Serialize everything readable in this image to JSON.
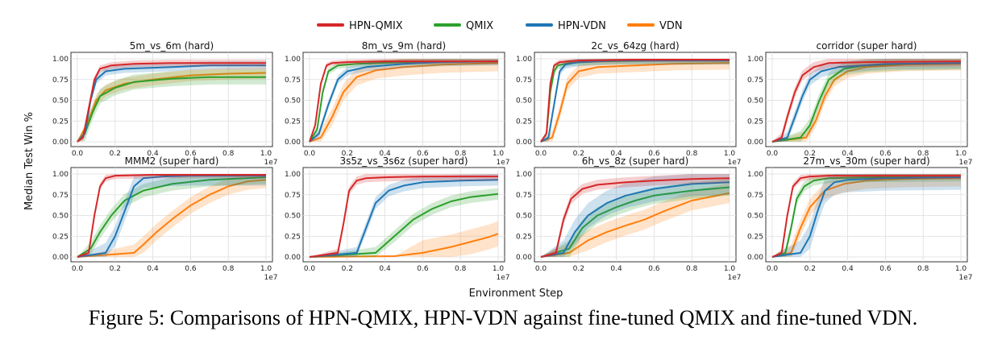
{
  "figure": {
    "legend": [
      {
        "name": "HPN-QMIX",
        "color": "#d62728"
      },
      {
        "name": "QMIX",
        "color": "#2ca02c"
      },
      {
        "name": "HPN-VDN",
        "color": "#1f77b4"
      },
      {
        "name": "VDN",
        "color": "#ff7f0e"
      }
    ],
    "xlabel": "Environment Step",
    "ylabel": "Median Test Win %",
    "x_scale_label": "1e7",
    "caption": "Figure 5: Comparisons of HPN-QMIX, HPN-VDN against fine-tuned QMIX and fine-tuned VDN."
  },
  "chart_data": [
    {
      "type": "line",
      "title": "5m_vs_6m (hard)",
      "xlim": [
        0,
        1.0
      ],
      "ylim": [
        0,
        1.0
      ],
      "xticks": [
        "0.0",
        "0.2",
        "0.4",
        "0.6",
        "0.8",
        "1.0"
      ],
      "yticks": [
        "0.00",
        "0.25",
        "0.50",
        "0.75",
        "1.00"
      ],
      "series": [
        {
          "name": "HPN-QMIX",
          "x": [
            0,
            0.03,
            0.06,
            0.09,
            0.12,
            0.18,
            0.3,
            0.5,
            0.7,
            1.0
          ],
          "y": [
            0,
            0.05,
            0.4,
            0.75,
            0.88,
            0.92,
            0.94,
            0.95,
            0.95,
            0.95
          ],
          "band": 0.04
        },
        {
          "name": "QMIX",
          "x": [
            0,
            0.04,
            0.08,
            0.12,
            0.2,
            0.3,
            0.5,
            0.7,
            1.0
          ],
          "y": [
            0,
            0.1,
            0.35,
            0.55,
            0.65,
            0.72,
            0.76,
            0.78,
            0.78
          ],
          "band": 0.09
        },
        {
          "name": "HPN-VDN",
          "x": [
            0,
            0.04,
            0.07,
            0.1,
            0.15,
            0.25,
            0.5,
            0.7,
            1.0
          ],
          "y": [
            0,
            0.1,
            0.5,
            0.75,
            0.85,
            0.88,
            0.9,
            0.92,
            0.92
          ],
          "band": 0.05
        },
        {
          "name": "VDN",
          "x": [
            0,
            0.05,
            0.1,
            0.15,
            0.25,
            0.4,
            0.6,
            0.8,
            1.0
          ],
          "y": [
            0,
            0.2,
            0.5,
            0.62,
            0.7,
            0.75,
            0.8,
            0.82,
            0.83
          ],
          "band": 0.07
        }
      ]
    },
    {
      "type": "line",
      "title": "8m_vs_9m (hard)",
      "xlim": [
        0,
        1.0
      ],
      "ylim": [
        0,
        1.0
      ],
      "xticks": [
        "0.0",
        "0.2",
        "0.4",
        "0.6",
        "0.8",
        "1.0"
      ],
      "yticks": [
        "0.00",
        "0.25",
        "0.50",
        "0.75",
        "1.00"
      ],
      "series": [
        {
          "name": "HPN-QMIX",
          "x": [
            0,
            0.03,
            0.06,
            0.09,
            0.12,
            0.2,
            0.4,
            1.0
          ],
          "y": [
            0,
            0.2,
            0.7,
            0.92,
            0.95,
            0.96,
            0.97,
            0.97
          ],
          "band": 0.03
        },
        {
          "name": "QMIX",
          "x": [
            0,
            0.04,
            0.07,
            0.1,
            0.15,
            0.25,
            0.5,
            1.0
          ],
          "y": [
            0,
            0.15,
            0.6,
            0.85,
            0.92,
            0.94,
            0.96,
            0.97
          ],
          "band": 0.04
        },
        {
          "name": "HPN-VDN",
          "x": [
            0,
            0.05,
            0.1,
            0.15,
            0.2,
            0.3,
            0.5,
            0.7,
            1.0
          ],
          "y": [
            0,
            0.1,
            0.45,
            0.75,
            0.85,
            0.9,
            0.94,
            0.96,
            0.97
          ],
          "band": 0.05
        },
        {
          "name": "VDN",
          "x": [
            0,
            0.06,
            0.12,
            0.18,
            0.25,
            0.35,
            0.5,
            0.7,
            1.0
          ],
          "y": [
            0,
            0.05,
            0.3,
            0.6,
            0.78,
            0.86,
            0.9,
            0.93,
            0.95
          ],
          "band": 0.1
        }
      ]
    },
    {
      "type": "line",
      "title": "2c_vs_64zg (hard)",
      "xlim": [
        0,
        1.0
      ],
      "ylim": [
        0,
        1.0
      ],
      "xticks": [
        "0.0",
        "0.2",
        "0.4",
        "0.6",
        "0.8",
        "1.0"
      ],
      "yticks": [
        "0.00",
        "0.25",
        "0.50",
        "0.75",
        "1.00"
      ],
      "series": [
        {
          "name": "HPN-QMIX",
          "x": [
            0,
            0.03,
            0.05,
            0.07,
            0.1,
            0.2,
            0.5,
            1.0
          ],
          "y": [
            0,
            0.1,
            0.7,
            0.92,
            0.96,
            0.98,
            0.99,
            0.99
          ],
          "band": 0.03
        },
        {
          "name": "QMIX",
          "x": [
            0,
            0.03,
            0.05,
            0.07,
            0.09,
            0.15,
            0.3,
            0.6,
            1.0
          ],
          "y": [
            0,
            0.1,
            0.6,
            0.85,
            0.92,
            0.95,
            0.97,
            0.98,
            0.98
          ],
          "band": 0.04
        },
        {
          "name": "HPN-VDN",
          "x": [
            0,
            0.04,
            0.07,
            0.1,
            0.13,
            0.2,
            0.4,
            1.0
          ],
          "y": [
            0,
            0.05,
            0.45,
            0.85,
            0.93,
            0.96,
            0.98,
            0.98
          ],
          "band": 0.05
        },
        {
          "name": "VDN",
          "x": [
            0,
            0.06,
            0.1,
            0.14,
            0.2,
            0.3,
            0.5,
            0.7,
            1.0
          ],
          "y": [
            0,
            0.05,
            0.35,
            0.7,
            0.85,
            0.9,
            0.92,
            0.94,
            0.95
          ],
          "band": 0.08
        }
      ]
    },
    {
      "type": "line",
      "title": "corridor (super hard)",
      "xlim": [
        0,
        1.0
      ],
      "ylim": [
        0,
        1.0
      ],
      "xticks": [
        "0.0",
        "0.2",
        "0.4",
        "0.6",
        "0.8",
        "1.0"
      ],
      "yticks": [
        "0.00",
        "0.25",
        "0.50",
        "0.75",
        "1.00"
      ],
      "series": [
        {
          "name": "HPN-QMIX",
          "x": [
            0,
            0.05,
            0.08,
            0.12,
            0.16,
            0.22,
            0.3,
            0.5,
            1.0
          ],
          "y": [
            0,
            0.05,
            0.3,
            0.6,
            0.8,
            0.9,
            0.95,
            0.96,
            0.97
          ],
          "band": 0.06
        },
        {
          "name": "QMIX",
          "x": [
            0,
            0.15,
            0.2,
            0.25,
            0.3,
            0.38,
            0.5,
            0.7,
            1.0
          ],
          "y": [
            0,
            0.05,
            0.2,
            0.5,
            0.75,
            0.88,
            0.92,
            0.94,
            0.95
          ],
          "band": 0.08
        },
        {
          "name": "HPN-VDN",
          "x": [
            0,
            0.08,
            0.12,
            0.16,
            0.2,
            0.26,
            0.35,
            0.6,
            1.0
          ],
          "y": [
            0,
            0.05,
            0.3,
            0.55,
            0.75,
            0.85,
            0.9,
            0.94,
            0.95
          ],
          "band": 0.07
        },
        {
          "name": "VDN",
          "x": [
            0,
            0.18,
            0.23,
            0.28,
            0.33,
            0.4,
            0.5,
            0.7,
            1.0
          ],
          "y": [
            0,
            0.05,
            0.25,
            0.55,
            0.75,
            0.85,
            0.9,
            0.93,
            0.94
          ],
          "band": 0.08
        }
      ]
    },
    {
      "type": "line",
      "title": "MMM2 (super hard)",
      "xlim": [
        0,
        1.0
      ],
      "ylim": [
        0,
        1.0
      ],
      "xticks": [
        "0.0",
        "0.2",
        "0.4",
        "0.6",
        "0.8",
        "1.0"
      ],
      "yticks": [
        "0.00",
        "0.25",
        "0.50",
        "0.75",
        "1.00"
      ],
      "series": [
        {
          "name": "HPN-QMIX",
          "x": [
            0,
            0.06,
            0.09,
            0.12,
            0.15,
            0.2,
            0.4,
            1.0
          ],
          "y": [
            0,
            0.05,
            0.5,
            0.85,
            0.95,
            0.98,
            0.99,
            0.99
          ],
          "band": 0.04
        },
        {
          "name": "QMIX",
          "x": [
            0,
            0.07,
            0.12,
            0.18,
            0.25,
            0.35,
            0.5,
            0.7,
            1.0
          ],
          "y": [
            0,
            0.1,
            0.3,
            0.5,
            0.68,
            0.8,
            0.88,
            0.93,
            0.96
          ],
          "band": 0.08
        },
        {
          "name": "HPN-VDN",
          "x": [
            0,
            0.15,
            0.2,
            0.25,
            0.3,
            0.35,
            0.45,
            0.6,
            1.0
          ],
          "y": [
            0,
            0.05,
            0.25,
            0.55,
            0.85,
            0.95,
            0.97,
            0.98,
            0.98
          ],
          "band": 0.12
        },
        {
          "name": "VDN",
          "x": [
            0,
            0.3,
            0.35,
            0.42,
            0.5,
            0.6,
            0.7,
            0.8,
            0.9,
            1.0
          ],
          "y": [
            0,
            0.05,
            0.15,
            0.3,
            0.45,
            0.62,
            0.75,
            0.85,
            0.91,
            0.93
          ],
          "band": 0.1
        }
      ]
    },
    {
      "type": "line",
      "title": "3s5z_vs_3s6z (super hard)",
      "xlim": [
        0,
        1.0
      ],
      "ylim": [
        0,
        1.0
      ],
      "xticks": [
        "0.0",
        "0.2",
        "0.4",
        "0.6",
        "0.8",
        "1.0"
      ],
      "yticks": [
        "0.00",
        "0.25",
        "0.50",
        "0.75",
        "1.00"
      ],
      "series": [
        {
          "name": "HPN-QMIX",
          "x": [
            0,
            0.15,
            0.18,
            0.21,
            0.25,
            0.3,
            0.4,
            0.6,
            1.0
          ],
          "y": [
            0,
            0.05,
            0.4,
            0.8,
            0.92,
            0.95,
            0.96,
            0.97,
            0.97
          ],
          "band": 0.05
        },
        {
          "name": "QMIX",
          "x": [
            0,
            0.35,
            0.45,
            0.55,
            0.65,
            0.75,
            0.85,
            1.0
          ],
          "y": [
            0,
            0.05,
            0.25,
            0.45,
            0.58,
            0.67,
            0.72,
            0.76
          ],
          "band": 0.07
        },
        {
          "name": "HPN-VDN",
          "x": [
            0,
            0.25,
            0.3,
            0.35,
            0.42,
            0.5,
            0.6,
            0.8,
            1.0
          ],
          "y": [
            0,
            0.05,
            0.35,
            0.65,
            0.8,
            0.86,
            0.9,
            0.92,
            0.93
          ],
          "band": 0.07
        },
        {
          "name": "VDN",
          "x": [
            0,
            0.45,
            0.6,
            0.75,
            0.85,
            0.95,
            1.0
          ],
          "y": [
            0,
            0.01,
            0.05,
            0.12,
            0.18,
            0.24,
            0.28
          ],
          "band": 0.15
        }
      ]
    },
    {
      "type": "line",
      "title": "6h_vs_8z (super hard)",
      "xlim": [
        0,
        1.0
      ],
      "ylim": [
        0,
        1.0
      ],
      "xticks": [
        "0.0",
        "0.2",
        "0.4",
        "0.6",
        "0.8",
        "1.0"
      ],
      "yticks": [
        "0.00",
        "0.25",
        "0.50",
        "0.75",
        "1.00"
      ],
      "series": [
        {
          "name": "HPN-QMIX",
          "x": [
            0,
            0.08,
            0.12,
            0.16,
            0.22,
            0.3,
            0.45,
            0.6,
            0.8,
            1.0
          ],
          "y": [
            0,
            0.05,
            0.45,
            0.7,
            0.82,
            0.87,
            0.9,
            0.92,
            0.94,
            0.95
          ],
          "band": 0.06
        },
        {
          "name": "QMIX",
          "x": [
            0,
            0.15,
            0.22,
            0.3,
            0.4,
            0.5,
            0.6,
            0.8,
            1.0
          ],
          "y": [
            0,
            0.1,
            0.35,
            0.5,
            0.6,
            0.68,
            0.74,
            0.8,
            0.84
          ],
          "band": 0.1
        },
        {
          "name": "HPN-VDN",
          "x": [
            0,
            0.12,
            0.18,
            0.25,
            0.35,
            0.45,
            0.6,
            0.8,
            1.0
          ],
          "y": [
            0,
            0.05,
            0.3,
            0.5,
            0.65,
            0.74,
            0.82,
            0.88,
            0.9
          ],
          "band": 0.15
        },
        {
          "name": "VDN",
          "x": [
            0,
            0.15,
            0.25,
            0.35,
            0.45,
            0.55,
            0.65,
            0.8,
            1.0
          ],
          "y": [
            0,
            0.05,
            0.2,
            0.3,
            0.38,
            0.45,
            0.55,
            0.68,
            0.77
          ],
          "band": 0.12
        }
      ]
    },
    {
      "type": "line",
      "title": "27m_vs_30m (super hard)",
      "xlim": [
        0,
        1.0
      ],
      "ylim": [
        0,
        1.0
      ],
      "xticks": [
        "0.0",
        "0.2",
        "0.4",
        "0.6",
        "0.8",
        "1.0"
      ],
      "yticks": [
        "0.00",
        "0.25",
        "0.50",
        "0.75",
        "1.00"
      ],
      "series": [
        {
          "name": "HPN-QMIX",
          "x": [
            0,
            0.05,
            0.08,
            0.11,
            0.15,
            0.2,
            0.3,
            1.0
          ],
          "y": [
            0,
            0.05,
            0.5,
            0.85,
            0.95,
            0.97,
            0.98,
            0.98
          ],
          "band": 0.04
        },
        {
          "name": "QMIX",
          "x": [
            0,
            0.07,
            0.1,
            0.13,
            0.17,
            0.22,
            0.3,
            0.5,
            1.0
          ],
          "y": [
            0,
            0.05,
            0.35,
            0.7,
            0.85,
            0.92,
            0.95,
            0.96,
            0.97
          ],
          "band": 0.06
        },
        {
          "name": "HPN-VDN",
          "x": [
            0,
            0.15,
            0.2,
            0.24,
            0.28,
            0.33,
            0.4,
            0.6,
            1.0
          ],
          "y": [
            0,
            0.05,
            0.25,
            0.55,
            0.8,
            0.9,
            0.93,
            0.95,
            0.96
          ],
          "band": 0.15
        },
        {
          "name": "VDN",
          "x": [
            0,
            0.1,
            0.15,
            0.2,
            0.28,
            0.38,
            0.5,
            0.7,
            1.0
          ],
          "y": [
            0,
            0.05,
            0.35,
            0.6,
            0.8,
            0.88,
            0.92,
            0.94,
            0.95
          ],
          "band": 0.1
        }
      ]
    }
  ]
}
